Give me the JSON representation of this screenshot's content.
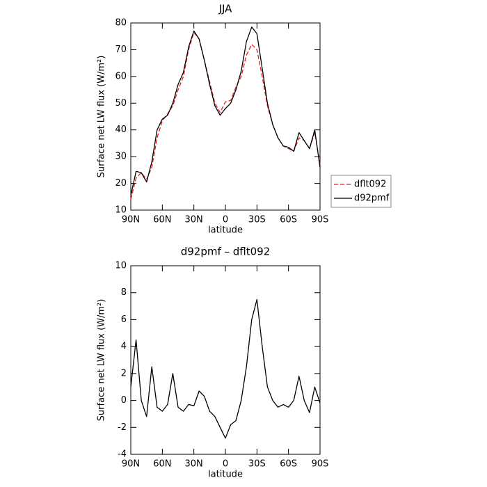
{
  "chart_data": [
    {
      "type": "line",
      "title": "JJA",
      "xlabel": "latitude",
      "ylabel": "Surface net LW flux (W/m²)",
      "x": [
        90,
        85,
        80,
        75,
        70,
        65,
        60,
        55,
        50,
        45,
        40,
        35,
        30,
        25,
        20,
        15,
        10,
        5,
        0,
        -5,
        -10,
        -15,
        -20,
        -25,
        -30,
        -35,
        -40,
        -45,
        -50,
        -55,
        -60,
        -65,
        -70,
        -75,
        -80,
        -85,
        -90
      ],
      "series": [
        {
          "name": "dflt092",
          "color": "#e31a1c",
          "dash": true,
          "values": [
            14,
            22,
            24,
            21.5,
            26,
            37,
            43.5,
            46,
            49,
            55,
            60,
            70,
            76.5,
            74,
            66,
            58,
            50,
            46.5,
            50.5,
            51,
            56,
            60,
            68,
            72,
            70,
            60,
            49,
            42,
            37,
            34,
            33,
            32,
            37,
            36,
            33,
            39,
            27
          ]
        },
        {
          "name": "d92pmf",
          "color": "#000000",
          "dash": false,
          "values": [
            15.5,
            24.5,
            24,
            20.5,
            28,
            40,
            44,
            45.5,
            50,
            57,
            61.5,
            71,
            77,
            74,
            66,
            57,
            49,
            45.5,
            48,
            50,
            55,
            62,
            73,
            78.5,
            76,
            63,
            50,
            42,
            37,
            34,
            33.5,
            32,
            39,
            36,
            33,
            40,
            26
          ]
        }
      ],
      "xlim": [
        90,
        -90
      ],
      "xticks": [
        {
          "value": 90,
          "label": "90N"
        },
        {
          "value": 60,
          "label": "60N"
        },
        {
          "value": 30,
          "label": "30N"
        },
        0,
        {
          "value": -30,
          "label": "30S"
        },
        {
          "value": -60,
          "label": "60S"
        },
        {
          "value": -90,
          "label": "90S"
        }
      ],
      "ylim": [
        10,
        80
      ],
      "yticks": [
        10,
        20,
        30,
        40,
        50,
        60,
        70,
        80
      ],
      "legend": "right"
    },
    {
      "type": "line",
      "title": "d92pmf – dflt092",
      "xlabel": "latitude",
      "ylabel": "Surface net LW flux (W/m²)",
      "x": [
        90,
        85,
        80,
        75,
        70,
        65,
        60,
        55,
        50,
        45,
        40,
        35,
        30,
        25,
        20,
        15,
        10,
        5,
        0,
        -5,
        -10,
        -15,
        -20,
        -25,
        -30,
        -35,
        -40,
        -45,
        -50,
        -55,
        -60,
        -65,
        -70,
        -75,
        -80,
        -85,
        -90
      ],
      "series": [
        {
          "color": "#000000",
          "dash": false,
          "values": [
            1,
            4.5,
            0,
            -1.2,
            2.5,
            -0.5,
            -0.8,
            -0.3,
            2,
            -0.5,
            -0.8,
            -0.3,
            -0.4,
            0.7,
            0.3,
            -0.8,
            -1.2,
            -2,
            -2.8,
            -1.8,
            -1.5,
            0,
            2.5,
            6,
            7.5,
            4,
            1,
            0,
            -0.5,
            -0.3,
            -0.5,
            0,
            1.8,
            0,
            -0.9,
            1,
            -0.2
          ]
        }
      ],
      "xlim": [
        90,
        -90
      ],
      "xticks": [
        {
          "value": 90,
          "label": "90N"
        },
        {
          "value": 60,
          "label": "60N"
        },
        {
          "value": 30,
          "label": "30N"
        },
        0,
        {
          "value": -30,
          "label": "30S"
        },
        {
          "value": -60,
          "label": "60S"
        },
        {
          "value": -90,
          "label": "90S"
        }
      ],
      "ylim": [
        -4,
        10
      ],
      "yticks": [
        -4,
        -2,
        0,
        2,
        4,
        6,
        8,
        10
      ]
    }
  ]
}
